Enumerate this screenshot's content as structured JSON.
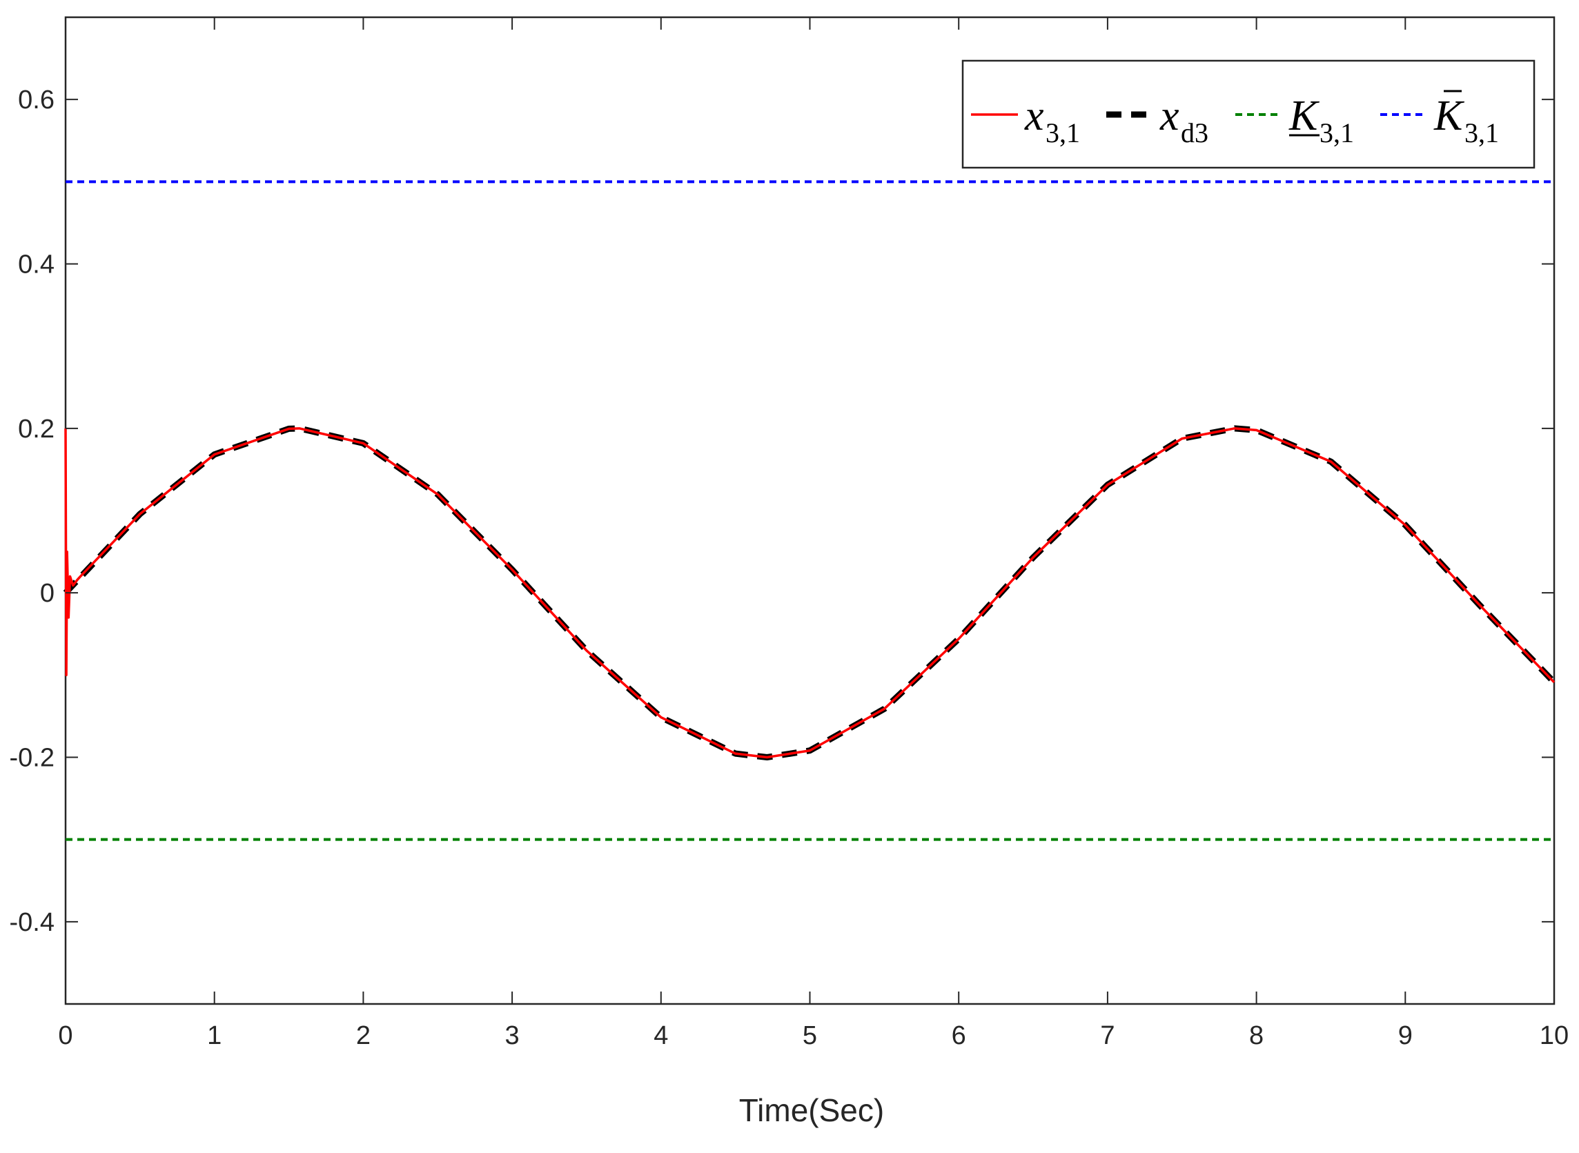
{
  "chart_data": {
    "type": "line",
    "xlabel": "Time(Sec)",
    "ylabel": "",
    "xlim": [
      0,
      10
    ],
    "ylim": [
      -0.5,
      0.7
    ],
    "x_ticks": [
      0,
      1,
      2,
      3,
      4,
      5,
      6,
      7,
      8,
      9,
      10
    ],
    "y_ticks": [
      -0.4,
      -0.2,
      0,
      0.2,
      0.4,
      0.6
    ],
    "x_tick_labels": [
      "0",
      "1",
      "2",
      "3",
      "4",
      "5",
      "6",
      "7",
      "8",
      "9",
      "10"
    ],
    "y_tick_labels": [
      "-0.4",
      "-0.2",
      "0",
      "0.2",
      "0.4",
      "0.6"
    ],
    "grid": false,
    "legend_position": "top-right",
    "series": [
      {
        "name": "x_{3,1}",
        "legend_main": "x",
        "legend_sub": "3,1",
        "color": "#ff0000",
        "style": "solid",
        "x": [
          0,
          0.005,
          0.01,
          0.02,
          0.03,
          0.05,
          0.08,
          0.1,
          0.5,
          1.0,
          1.5,
          1.5708,
          2.0,
          2.5,
          3.0,
          3.5,
          4.0,
          4.5,
          4.7124,
          5.0,
          5.5,
          6.0,
          6.5,
          7.0,
          7.5,
          7.854,
          8.0,
          8.5,
          9.0,
          9.5,
          10.0
        ],
        "y": [
          0.2,
          -0.1,
          0.05,
          -0.03,
          0.02,
          0.009,
          0.016,
          0.02,
          0.0959,
          0.1683,
          0.1995,
          0.2,
          0.1819,
          0.1197,
          0.0282,
          -0.0702,
          -0.1514,
          -0.1955,
          -0.2,
          -0.1918,
          -0.1411,
          -0.0559,
          0.043,
          0.1314,
          0.1876,
          0.2,
          0.1979,
          0.1596,
          0.0824,
          -0.015,
          -0.1088
        ]
      },
      {
        "name": "x_{d3}",
        "legend_main": "x",
        "legend_sub": "d3",
        "color": "#000000",
        "style": "dashed",
        "x": [
          0,
          0.5,
          1.0,
          1.5,
          1.5708,
          2.0,
          2.5,
          3.0,
          3.5,
          4.0,
          4.5,
          4.7124,
          5.0,
          5.5,
          6.0,
          6.5,
          7.0,
          7.5,
          7.854,
          8.0,
          8.5,
          9.0,
          9.5,
          10.0
        ],
        "y": [
          0,
          0.0959,
          0.1683,
          0.1995,
          0.2,
          0.1819,
          0.1197,
          0.0282,
          -0.0702,
          -0.1514,
          -0.1955,
          -0.2,
          -0.1918,
          -0.1411,
          -0.0559,
          0.043,
          0.1314,
          0.1876,
          0.2,
          0.1979,
          0.1596,
          0.0824,
          -0.015,
          -0.1088
        ]
      },
      {
        "name": "K_{3,1} (lower)",
        "legend_main": "K",
        "legend_sub": "3,1",
        "legend_accent": "underline",
        "color": "#008000",
        "style": "dotted",
        "x": [
          0,
          10
        ],
        "y": [
          -0.3,
          -0.3
        ]
      },
      {
        "name": "K_{3,1} (upper)",
        "legend_main": "K",
        "legend_sub": "3,1",
        "legend_accent": "overline",
        "color": "#0000ff",
        "style": "dotted",
        "x": [
          0,
          10
        ],
        "y": [
          0.5,
          0.5
        ]
      }
    ]
  }
}
